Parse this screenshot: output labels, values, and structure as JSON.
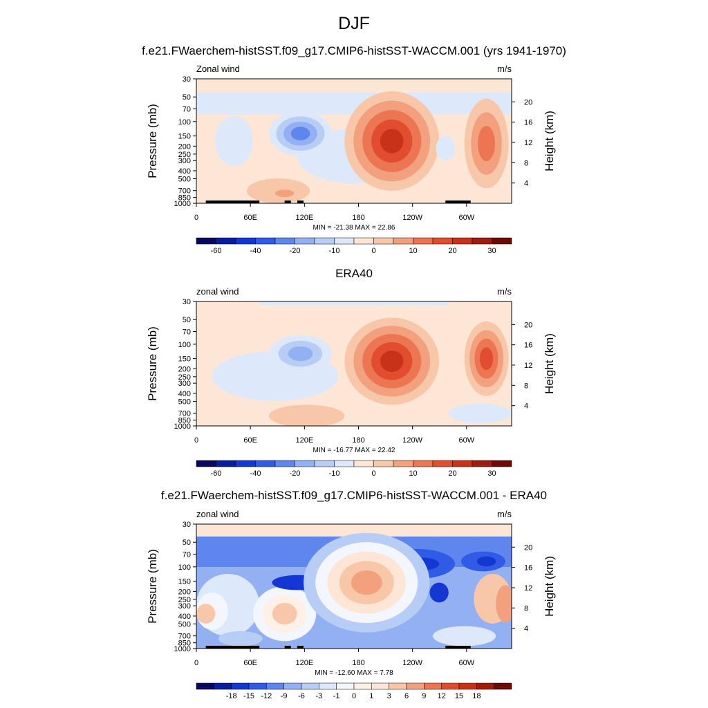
{
  "page": {
    "season": "DJF",
    "panel_titles": [
      "f.e21.FWaerchem-histSST.f09_g17.CMIP6-histSST-WACCM.001 (yrs 1941-1970)",
      "ERA40",
      "f.e21.FWaerchem-histSST.f09_g17.CMIP6-histSST-WACCM.001 - ERA40"
    ]
  },
  "colors": {
    "abs_scale": [
      "#08085e",
      "#0a1c9e",
      "#1437d4",
      "#2f5be6",
      "#5f86ec",
      "#93b0f2",
      "#b8cdf6",
      "#dde8fb",
      "#fde6d6",
      "#f8c7aa",
      "#f3a07e",
      "#ec7654",
      "#e14d2e",
      "#c83218",
      "#9e1b0d",
      "#6e0a06"
    ],
    "diff_scale": [
      "#08085e",
      "#0a1c9e",
      "#1437d4",
      "#2f5be6",
      "#5f86ec",
      "#93b0f2",
      "#b8cdf6",
      "#dde8fb",
      "#f3f6fd",
      "#fdf0e6",
      "#fde6d6",
      "#f8c7aa",
      "#f3a07e",
      "#ec7654",
      "#e14d2e",
      "#c83218",
      "#9e1b0d",
      "#6e0a06"
    ]
  },
  "chart_data": [
    {
      "type": "contour",
      "title": "f.e21.FWaerchem-histSST.f09_g17.CMIP6-histSST-WACCM.001 (yrs 1941-1970)",
      "left_label": "Zonal wind",
      "units": "m/s",
      "ylabel": "Pressure (mb)",
      "y2label": "Height (km)",
      "pressure_ticks": [
        "30",
        "50",
        "70",
        "100",
        "150",
        "200",
        "250",
        "300",
        "400",
        "500",
        "700",
        "850",
        "1000"
      ],
      "height_ticks": [
        "20",
        "16",
        "12",
        "8",
        "4"
      ],
      "x_ticks": [
        "0",
        "60E",
        "120E",
        "180",
        "120W",
        "60W"
      ],
      "stats": "MIN = -21.38  MAX =  22.86",
      "levels": [
        "-60",
        "-40",
        "-20",
        "-10",
        "0",
        "10",
        "20",
        "30"
      ],
      "min": -21.38,
      "max": 22.86
    },
    {
      "type": "contour",
      "title": "ERA40",
      "left_label": "zonal wind",
      "units": "m/s",
      "ylabel": "Pressure (mb)",
      "y2label": "Height (km)",
      "pressure_ticks": [
        "30",
        "50",
        "70",
        "100",
        "150",
        "200",
        "250",
        "300",
        "400",
        "500",
        "700",
        "850",
        "1000"
      ],
      "height_ticks": [
        "20",
        "16",
        "12",
        "8",
        "4"
      ],
      "x_ticks": [
        "0",
        "60E",
        "120E",
        "180",
        "120W",
        "60W"
      ],
      "stats": "MIN = -16.77  MAX =  22.42",
      "levels": [
        "-60",
        "-40",
        "-20",
        "-10",
        "0",
        "10",
        "20",
        "30"
      ],
      "min": -16.77,
      "max": 22.42
    },
    {
      "type": "contour",
      "title": "f.e21.FWaerchem-histSST.f09_g17.CMIP6-histSST-WACCM.001 - ERA40",
      "left_label": "zonal wind",
      "units": "m/s",
      "ylabel": "Pressure (mb)",
      "y2label": "Height (km)",
      "pressure_ticks": [
        "30",
        "50",
        "70",
        "100",
        "150",
        "200",
        "250",
        "300",
        "400",
        "500",
        "700",
        "850",
        "1000"
      ],
      "height_ticks": [
        "20",
        "16",
        "12",
        "8",
        "4"
      ],
      "x_ticks": [
        "0",
        "60E",
        "120E",
        "180",
        "120W",
        "60W"
      ],
      "stats": "MIN = -12.60  MAX =   7.78",
      "levels": [
        "-18",
        "-15",
        "-12",
        "-9",
        "-6",
        "-3",
        "-1",
        "0",
        "1",
        "3",
        "6",
        "9",
        "12",
        "15",
        "18"
      ],
      "min": -12.6,
      "max": 7.78
    }
  ]
}
